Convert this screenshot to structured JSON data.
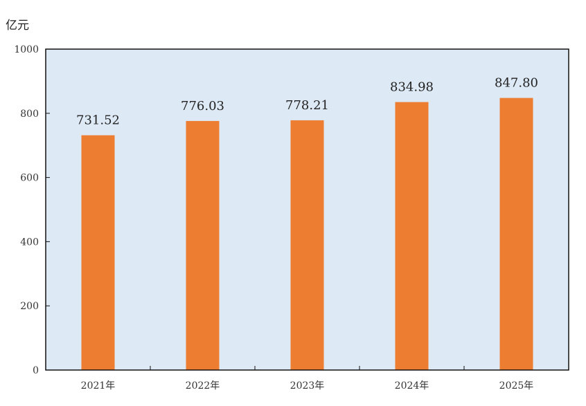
{
  "chart_data": {
    "type": "bar",
    "ylabel": "亿元",
    "categories": [
      "2021年",
      "2022年",
      "2023年",
      "2024年",
      "2025年"
    ],
    "values": [
      731.52,
      776.03,
      778.21,
      834.98,
      847.8
    ],
    "value_labels": [
      "731.52",
      "776.03",
      "778.21",
      "834.98",
      "847.80"
    ],
    "ylim": [
      0,
      1000
    ],
    "yticks": [
      0,
      200,
      400,
      600,
      800,
      1000
    ],
    "grid": false,
    "legend": "none",
    "colors": {
      "bar": "#ED7D31",
      "plot_background": "#DDE9F5",
      "axis": "#111111"
    }
  }
}
